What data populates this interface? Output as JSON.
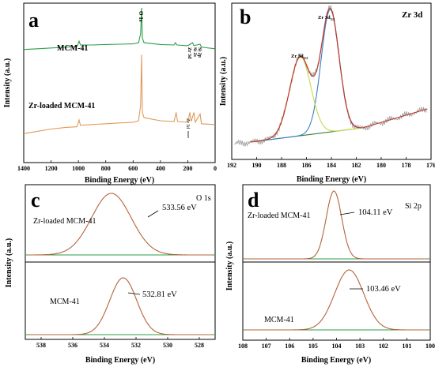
{
  "chart_data": [
    {
      "panel": "a",
      "type": "line",
      "title": "",
      "xlabel": "Binding Energy (eV)",
      "ylabel": "Intensity (a.u.)",
      "xlim": [
        1400,
        0
      ],
      "x_reversed": true,
      "xticks": [
        "1400",
        "1200",
        "1000",
        "800",
        "600",
        "400",
        "200",
        "0"
      ],
      "series": [
        {
          "name": "MCM-41",
          "color": "#2e9e4a",
          "points": [
            [
              1400,
              0.715
            ],
            [
              1300,
              0.72
            ],
            [
              1200,
              0.725
            ],
            [
              1100,
              0.73
            ],
            [
              1010,
              0.735
            ],
            [
              995,
              0.77
            ],
            [
              985,
              0.745
            ],
            [
              900,
              0.745
            ],
            [
              800,
              0.748
            ],
            [
              700,
              0.75
            ],
            [
              600,
              0.752
            ],
            [
              560,
              0.76
            ],
            [
              545,
              0.82
            ],
            [
              538,
              0.99
            ],
            [
              532,
              0.79
            ],
            [
              520,
              0.76
            ],
            [
              400,
              0.748
            ],
            [
              300,
              0.745
            ],
            [
              290,
              0.76
            ],
            [
              280,
              0.745
            ],
            [
              200,
              0.74
            ],
            [
              165,
              0.76
            ],
            [
              155,
              0.74
            ],
            [
              110,
              0.75
            ],
            [
              100,
              0.73
            ],
            [
              0,
              0.72
            ]
          ]
        },
        {
          "name": "Zr-loaded MCM-41",
          "color": "#e09a5a",
          "points": [
            [
              1400,
              0.16
            ],
            [
              1300,
              0.175
            ],
            [
              1200,
              0.19
            ],
            [
              1100,
              0.2
            ],
            [
              1010,
              0.205
            ],
            [
              995,
              0.25
            ],
            [
              985,
              0.215
            ],
            [
              900,
              0.22
            ],
            [
              800,
              0.225
            ],
            [
              700,
              0.23
            ],
            [
              600,
              0.235
            ],
            [
              560,
              0.245
            ],
            [
              545,
              0.35
            ],
            [
              538,
              0.68
            ],
            [
              532,
              0.3
            ],
            [
              520,
              0.265
            ],
            [
              400,
              0.245
            ],
            [
              300,
              0.24
            ],
            [
              285,
              0.3
            ],
            [
              275,
              0.24
            ],
            [
              200,
              0.235
            ],
            [
              185,
              0.3
            ],
            [
              175,
              0.24
            ],
            [
              155,
              0.3
            ],
            [
              145,
              0.235
            ],
            [
              110,
              0.29
            ],
            [
              100,
              0.225
            ],
            [
              0,
              0.22
            ]
          ]
        }
      ],
      "annotations": [
        "O 1s",
        "Zr 3d",
        "Si 2s",
        "Si 2p",
        "Zr 3d"
      ],
      "panel_label": "a"
    },
    {
      "panel": "b",
      "type": "line",
      "title": "Zr 3d",
      "xlabel": "Binding Energy (eV)",
      "ylabel": "Intensity (a.u.)",
      "xlim": [
        192,
        176
      ],
      "x_reversed": true,
      "xticks": [
        "192",
        "190",
        "188",
        "186",
        "184",
        "182",
        "180",
        "178",
        "176"
      ],
      "peaks": [
        {
          "label": "Zr 3d5/2",
          "label_main": "Zr 3d",
          "label_sub": "5/2",
          "center": 184.1,
          "color": "#3a7fc4"
        },
        {
          "label": "Zr 3d3/2",
          "label_main": "Zr 3d",
          "label_sub": "3/2",
          "center": 186.5,
          "color": "#c9d64a"
        }
      ],
      "panel_label": "b"
    },
    {
      "panel": "c",
      "type": "line",
      "title": "O 1s",
      "xlabel": "Binding Energy (eV)",
      "ylabel": "Intensity (a.u.)",
      "xlim": [
        539,
        527
      ],
      "x_reversed": true,
      "xticks": [
        "538",
        "536",
        "534",
        "532",
        "530",
        "528"
      ],
      "series": [
        {
          "name": "Zr-loaded MCM-41",
          "peak_label": "533.56 eV",
          "center": 533.56
        },
        {
          "name": "MCM-41",
          "peak_label": "532.81 eV",
          "center": 532.81
        }
      ],
      "panel_label": "c"
    },
    {
      "panel": "d",
      "type": "line",
      "title": "Si 2p",
      "xlabel": "Binding Energy (eV)",
      "ylabel": "Intensity (a.u.)",
      "xlim": [
        108,
        100
      ],
      "x_reversed": true,
      "xticks": [
        "108",
        "107",
        "106",
        "105",
        "104",
        "103",
        "102",
        "101",
        "100"
      ],
      "series": [
        {
          "name": "Zr-loaded MCM-41",
          "peak_label": "104.11 eV",
          "center": 104.11
        },
        {
          "name": "MCM-41",
          "peak_label": "103.46 eV",
          "center": 103.46
        }
      ],
      "panel_label": "d"
    }
  ]
}
